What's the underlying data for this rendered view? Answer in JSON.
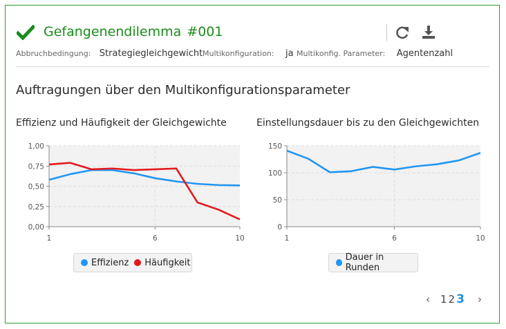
{
  "colors": {
    "green": "#1a8c1a",
    "blue": "#2196f3",
    "red": "#e31a1c"
  },
  "header": {
    "title": "Gefangenendilemma",
    "number": "#001",
    "refresh_icon": "refresh-icon",
    "download_icon": "download-icon"
  },
  "meta": [
    {
      "label": "Abbruchbedingung:",
      "value": "Strategiegleichgewicht"
    },
    {
      "label": "Multikonfiguration:",
      "value": "ja"
    },
    {
      "label": "Multikonfig. Parameter:",
      "value": "Agentenzahl"
    }
  ],
  "section_title": "Auftragungen über den Multikonfigurationsparameter",
  "chart_data": [
    {
      "type": "line",
      "title": "Effizienz und Häufigkeit der Gleichgewichte",
      "xlabel": "",
      "ylabel": "",
      "x": [
        1,
        2,
        3,
        4,
        5,
        6,
        7,
        8,
        9,
        10
      ],
      "xticks": [
        "1",
        "6",
        "10"
      ],
      "yticks": [
        "0,00",
        "0,25",
        "0,50",
        "0,75",
        "1,00"
      ],
      "ylim": [
        0,
        1
      ],
      "xlim": [
        1,
        10
      ],
      "grid": true,
      "legend_position": "bottom",
      "series": [
        {
          "name": "Effizienz",
          "color": "#2196f3",
          "values": [
            0.58,
            0.65,
            0.7,
            0.7,
            0.66,
            0.6,
            0.56,
            0.53,
            0.515,
            0.51
          ]
        },
        {
          "name": "Häufigkeit",
          "color": "#e31a1c",
          "values": [
            0.77,
            0.79,
            0.71,
            0.72,
            0.7,
            0.71,
            0.72,
            0.3,
            0.21,
            0.09
          ]
        }
      ]
    },
    {
      "type": "line",
      "title": "Einstellungsdauer bis zu den Gleichgewichten",
      "xlabel": "",
      "ylabel": "",
      "x": [
        1,
        2,
        3,
        4,
        5,
        6,
        7,
        8,
        9,
        10
      ],
      "xticks": [
        "1",
        "6",
        "10"
      ],
      "yticks": [
        "0",
        "50",
        "100",
        "150"
      ],
      "ylim": [
        0,
        150
      ],
      "xlim": [
        1,
        10
      ],
      "grid": true,
      "legend_position": "bottom",
      "series": [
        {
          "name": "Dauer in Runden",
          "color": "#2196f3",
          "values": [
            141,
            126,
            101,
            103,
            111,
            106,
            112,
            116,
            123,
            137
          ]
        }
      ]
    }
  ],
  "pagination": {
    "pages": [
      "1",
      "2",
      "3"
    ],
    "current": "3",
    "prev": "‹",
    "next": "›"
  }
}
